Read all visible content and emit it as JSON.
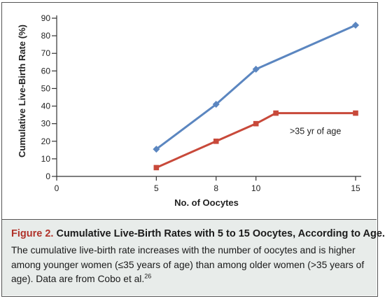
{
  "chart_data": {
    "type": "line",
    "xlabel": "No. of Oocytes",
    "ylabel": "Cumulative Live-Birth Rate (%)",
    "xlim": [
      0,
      15
    ],
    "ylim": [
      0,
      90
    ],
    "x_ticks": [
      0,
      5,
      8,
      10,
      15
    ],
    "y_ticks": [
      0,
      10,
      20,
      30,
      40,
      50,
      60,
      70,
      80,
      90
    ],
    "grid": false,
    "series": [
      {
        "name": "≤35 yr of age",
        "color": "#5b86c0",
        "marker": "diamond",
        "x": [
          5,
          8,
          10,
          15
        ],
        "y": [
          15.5,
          41,
          61,
          86
        ]
      },
      {
        "name": ">35 yr of age",
        "color": "#c8493a",
        "marker": "square",
        "x": [
          5,
          8,
          10,
          11,
          15
        ],
        "y": [
          5,
          20,
          30,
          36,
          36
        ]
      }
    ]
  },
  "caption": {
    "figure_label": "Figure 2.",
    "title": "Cumulative Live-Birth Rates with 5 to 15 Oocytes, According to Age.",
    "body": "The cumulative live-birth rate increases with the number of oocytes and is higher among younger women (≤35 years of age) than among older women (>35 years of age). Data are from Cobo et al.",
    "reference": "26"
  }
}
